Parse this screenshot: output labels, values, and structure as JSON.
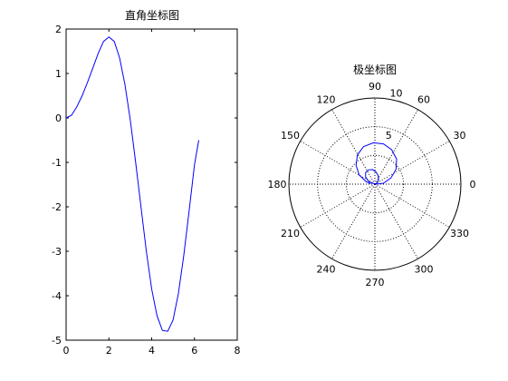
{
  "chart_data": [
    {
      "type": "line",
      "title": "直角坐标图",
      "xlabel": "",
      "ylabel": "",
      "xlim": [
        0,
        8
      ],
      "ylim": [
        -5,
        2
      ],
      "xticks": [
        0,
        2,
        4,
        6,
        8
      ],
      "yticks": [
        -5,
        -4,
        -3,
        -2,
        -1,
        0,
        1,
        2
      ],
      "grid": false,
      "series": [
        {
          "color": "#0000ff",
          "x": [
            0.0,
            0.25,
            0.5,
            0.75,
            1.0,
            1.25,
            1.5,
            1.75,
            2.0,
            2.25,
            2.5,
            2.75,
            3.0,
            3.25,
            3.5,
            3.75,
            4.0,
            4.25,
            4.5,
            4.75,
            5.0,
            5.25,
            5.5,
            5.75,
            6.0,
            6.2
          ],
          "y": [
            0.0,
            0.06,
            0.25,
            0.5,
            0.8,
            1.12,
            1.45,
            1.72,
            1.82,
            1.72,
            1.35,
            0.75,
            -0.05,
            -1.0,
            -2.0,
            -3.0,
            -3.85,
            -4.45,
            -4.78,
            -4.8,
            -4.55,
            -3.95,
            -3.1,
            -2.1,
            -1.05,
            -0.5
          ]
        }
      ]
    },
    {
      "type": "polar",
      "title": "极坐标图",
      "rlim": [
        0,
        10
      ],
      "rticks": [
        5,
        10
      ],
      "angle_ticks": [
        0,
        30,
        60,
        90,
        120,
        150,
        180,
        210,
        240,
        270,
        300,
        330
      ],
      "grid": true,
      "series": [
        {
          "color": "#0000ff",
          "theta_deg": [
            0,
            14,
            29,
            43,
            57,
            72,
            86,
            100,
            115,
            129,
            143,
            158,
            172,
            186,
            201,
            215,
            229,
            244,
            258,
            272,
            287,
            301,
            315,
            330,
            344,
            355
          ],
          "r": [
            0.0,
            0.06,
            0.25,
            0.5,
            0.8,
            1.12,
            1.45,
            1.72,
            1.82,
            1.72,
            1.35,
            0.75,
            -0.05,
            -1.0,
            -2.0,
            -3.0,
            -3.85,
            -4.45,
            -4.78,
            -4.8,
            -4.55,
            -3.95,
            -3.1,
            -2.1,
            -1.05,
            -0.5
          ]
        }
      ]
    }
  ]
}
